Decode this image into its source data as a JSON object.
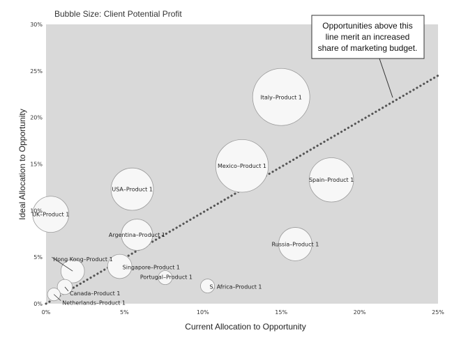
{
  "chart_data": {
    "type": "scatter",
    "subtitle": "Bubble Size: Client Potential Profit",
    "xlabel": "Current Allocation to Opportunity",
    "ylabel": "Ideal Allocation to Opportunity",
    "xlim": [
      0,
      25
    ],
    "ylim": [
      0,
      30
    ],
    "x_ticks": [
      "0%",
      "5%",
      "10%",
      "15%",
      "20%",
      "25%"
    ],
    "y_ticks": [
      "0%",
      "5%",
      "10%",
      "15%",
      "20%",
      "25%",
      "30%"
    ],
    "grid": false,
    "background": "#d9d9d9",
    "bubble_fill": "#f7f7f7",
    "trendline": {
      "x": [
        0,
        25
      ],
      "y": [
        0,
        24.5
      ],
      "style": "dotted",
      "color": "#555555"
    },
    "annotation": "Opportunities above this line merit an increased share of marketing budget.",
    "annotation_lines": [
      "Opportunities above this",
      "line merit an increased",
      "share of marketing budget."
    ],
    "points": [
      {
        "label": "Italy–Product 1",
        "x": 15.0,
        "y": 22.2,
        "size": 100
      },
      {
        "label": "Mexico–Product 1",
        "x": 12.5,
        "y": 14.8,
        "size": 85
      },
      {
        "label": "Spain–Product 1",
        "x": 18.2,
        "y": 13.3,
        "size": 60
      },
      {
        "label": "USA–Product 1",
        "x": 5.5,
        "y": 12.3,
        "size": 55
      },
      {
        "label": "UK–Product 1",
        "x": 0.3,
        "y": 9.6,
        "size": 40
      },
      {
        "label": "Argentina–Product 1",
        "x": 5.8,
        "y": 7.4,
        "size": 30
      },
      {
        "label": "Russia–Product 1",
        "x": 15.9,
        "y": 6.4,
        "size": 34
      },
      {
        "label": "Hong Kong–Product 1",
        "x": 1.7,
        "y": 3.5,
        "size": 17
      },
      {
        "label": "Singapore–Product 1",
        "x": 4.7,
        "y": 4.0,
        "size": 18
      },
      {
        "label": "Portugal–Product 1",
        "x": 7.6,
        "y": 2.8,
        "size": 6
      },
      {
        "label": "S. Africa–Product 1",
        "x": 10.3,
        "y": 1.9,
        "size": 6
      },
      {
        "label": "Canada–Product 1",
        "x": 1.2,
        "y": 1.8,
        "size": 7
      },
      {
        "label": "Netherlands–Product 1",
        "x": 0.5,
        "y": 1.0,
        "size": 5
      }
    ]
  }
}
